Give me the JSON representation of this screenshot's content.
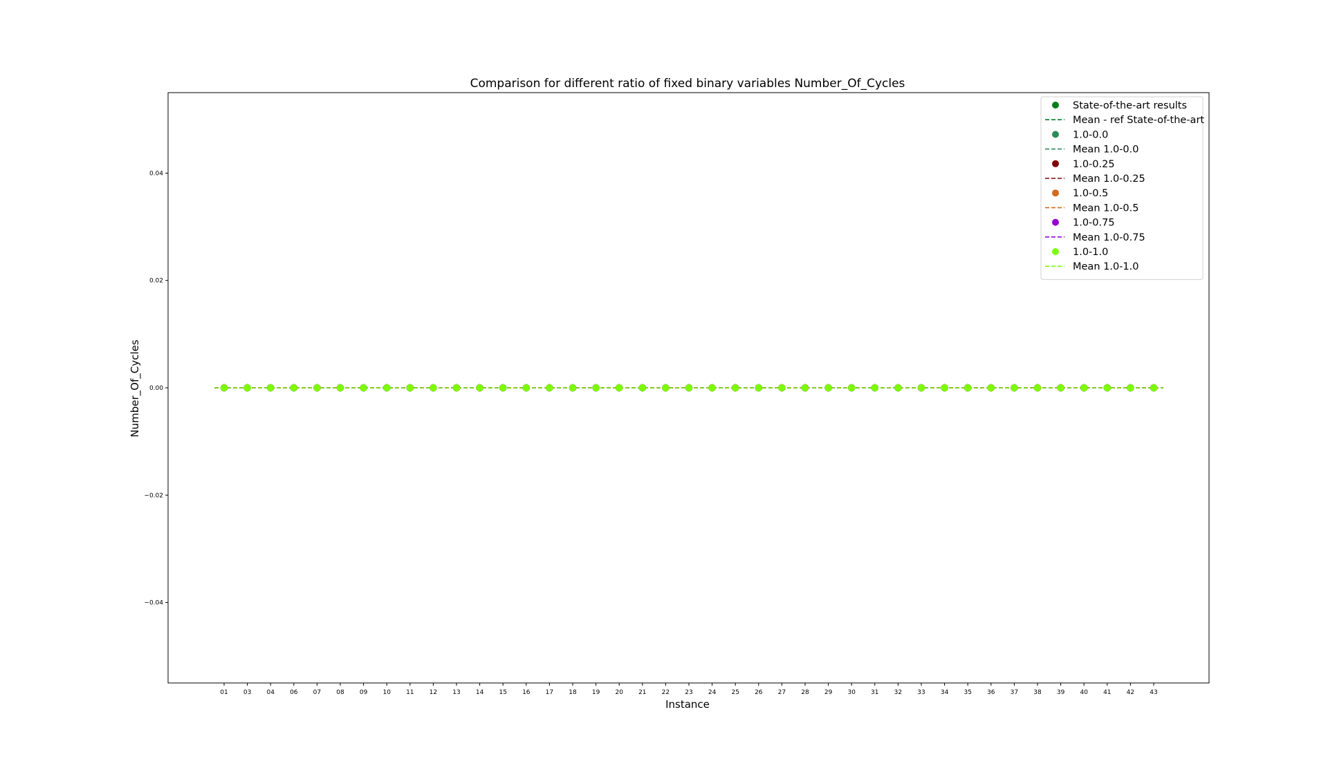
{
  "chart_data": {
    "type": "scatter",
    "title": "Comparison for different ratio of fixed binary variables Number_Of_Cycles",
    "xlabel": "Instance",
    "ylabel": "Number_Of_Cycles",
    "categories": [
      "01",
      "03",
      "04",
      "06",
      "07",
      "08",
      "09",
      "10",
      "11",
      "12",
      "13",
      "14",
      "15",
      "16",
      "17",
      "18",
      "19",
      "20",
      "21",
      "22",
      "23",
      "24",
      "25",
      "26",
      "27",
      "28",
      "29",
      "30",
      "31",
      "32",
      "33",
      "34",
      "35",
      "36",
      "37",
      "38",
      "39",
      "40",
      "41",
      "42",
      "43"
    ],
    "ylim": [
      -0.055,
      0.055
    ],
    "yticks": [
      {
        "value": 0.04,
        "label": "0.04"
      },
      {
        "value": 0.02,
        "label": "0.02"
      },
      {
        "value": 0.0,
        "label": "0.00"
      },
      {
        "value": -0.02,
        "label": "−0.02"
      },
      {
        "value": -0.04,
        "label": "−0.04"
      }
    ],
    "grid": false,
    "legend_position": "top-right",
    "series": [
      {
        "name": "State-of-the-art results",
        "kind": "points",
        "color": "#007f1f",
        "values": [
          0,
          0,
          0,
          0,
          0,
          0,
          0,
          0,
          0,
          0,
          0,
          0,
          0,
          0,
          0,
          0,
          0,
          0,
          0,
          0,
          0,
          0,
          0,
          0,
          0,
          0,
          0,
          0,
          0,
          0,
          0,
          0,
          0,
          0,
          0,
          0,
          0,
          0,
          0,
          0,
          0
        ]
      },
      {
        "name": "Mean - ref State-of-the-art",
        "kind": "mean",
        "color": "#007f1f",
        "value": 0
      },
      {
        "name": "1.0-0.0",
        "kind": "points",
        "color": "#2e8b57",
        "values": [
          0,
          0,
          0,
          0,
          0,
          0,
          0,
          0,
          0,
          0,
          0,
          0,
          0,
          0,
          0,
          0,
          0,
          0,
          0,
          0,
          0,
          0,
          0,
          0,
          0,
          0,
          0,
          0,
          0,
          0,
          0,
          0,
          0,
          0,
          0,
          0,
          0,
          0,
          0,
          0,
          0
        ]
      },
      {
        "name": "Mean 1.0-0.0",
        "kind": "mean",
        "color": "#2e8b57",
        "value": 0
      },
      {
        "name": "1.0-0.25",
        "kind": "points",
        "color": "#800000",
        "values": [
          0,
          0,
          0,
          0,
          0,
          0,
          0,
          0,
          0,
          0,
          0,
          0,
          0,
          0,
          0,
          0,
          0,
          0,
          0,
          0,
          0,
          0,
          0,
          0,
          0,
          0,
          0,
          0,
          0,
          0,
          0,
          0,
          0,
          0,
          0,
          0,
          0,
          0,
          0,
          0,
          0
        ]
      },
      {
        "name": "Mean 1.0-0.25",
        "kind": "mean",
        "color": "#800000",
        "value": 0
      },
      {
        "name": "1.0-0.5",
        "kind": "points",
        "color": "#d2691e",
        "values": [
          0,
          0,
          0,
          0,
          0,
          0,
          0,
          0,
          0,
          0,
          0,
          0,
          0,
          0,
          0,
          0,
          0,
          0,
          0,
          0,
          0,
          0,
          0,
          0,
          0,
          0,
          0,
          0,
          0,
          0,
          0,
          0,
          0,
          0,
          0,
          0,
          0,
          0,
          0,
          0,
          0
        ]
      },
      {
        "name": "Mean 1.0-0.5",
        "kind": "mean",
        "color": "#d2691e",
        "value": 0
      },
      {
        "name": "1.0-0.75",
        "kind": "points",
        "color": "#9400d3",
        "values": [
          0,
          0,
          0,
          0,
          0,
          0,
          0,
          0,
          0,
          0,
          0,
          0,
          0,
          0,
          0,
          0,
          0,
          0,
          0,
          0,
          0,
          0,
          0,
          0,
          0,
          0,
          0,
          0,
          0,
          0,
          0,
          0,
          0,
          0,
          0,
          0,
          0,
          0,
          0,
          0,
          0
        ]
      },
      {
        "name": "Mean 1.0-0.75",
        "kind": "mean",
        "color": "#9400d3",
        "value": 0
      },
      {
        "name": "1.0-1.0",
        "kind": "points",
        "color": "#7cfc00",
        "values": [
          0,
          0,
          0,
          0,
          0,
          0,
          0,
          0,
          0,
          0,
          0,
          0,
          0,
          0,
          0,
          0,
          0,
          0,
          0,
          0,
          0,
          0,
          0,
          0,
          0,
          0,
          0,
          0,
          0,
          0,
          0,
          0,
          0,
          0,
          0,
          0,
          0,
          0,
          0,
          0,
          0
        ]
      },
      {
        "name": "Mean 1.0-1.0",
        "kind": "mean",
        "color": "#7cfc00",
        "value": 0
      }
    ]
  }
}
